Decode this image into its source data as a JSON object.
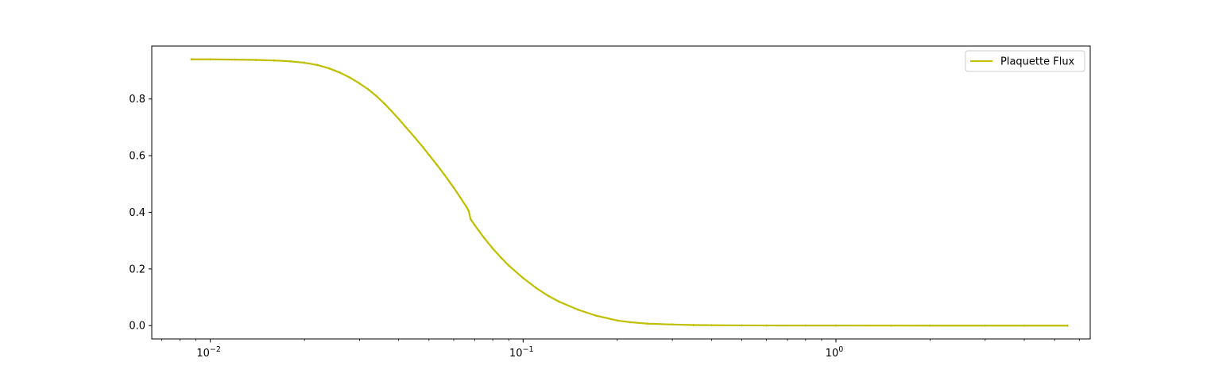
{
  "chart_data": {
    "type": "line",
    "title": "",
    "xlabel": "",
    "ylabel": "",
    "x_scale": "log",
    "xlim": [
      0.0065,
      6.5
    ],
    "ylim": [
      -0.047,
      0.987
    ],
    "grid": false,
    "legend_position": "top-right",
    "x_ticks": [
      {
        "value": 0.01,
        "base": "10",
        "exp": "−2"
      },
      {
        "value": 0.1,
        "base": "10",
        "exp": "−1"
      },
      {
        "value": 1,
        "base": "10",
        "exp": "0"
      }
    ],
    "y_ticks": [
      {
        "value": 0.0,
        "label": "0.0"
      },
      {
        "value": 0.2,
        "label": "0.2"
      },
      {
        "value": 0.4,
        "label": "0.4"
      },
      {
        "value": 0.6,
        "label": "0.6"
      },
      {
        "value": 0.8,
        "label": "0.8"
      }
    ],
    "series": [
      {
        "name": "Plaquette Flux",
        "color": "#bfbf00",
        "x": [
          0.0087,
          0.01,
          0.012,
          0.014,
          0.016,
          0.018,
          0.02,
          0.022,
          0.024,
          0.026,
          0.028,
          0.03,
          0.032,
          0.034,
          0.036,
          0.038,
          0.04,
          0.042,
          0.045,
          0.048,
          0.05,
          0.053,
          0.056,
          0.06,
          0.063,
          0.066,
          0.067,
          0.068,
          0.07,
          0.075,
          0.08,
          0.085,
          0.09,
          0.1,
          0.11,
          0.12,
          0.13,
          0.15,
          0.17,
          0.2,
          0.22,
          0.25,
          0.3,
          0.35,
          0.4,
          0.5,
          0.6,
          0.8,
          1.0,
          1.5,
          2.0,
          3.0,
          4.0,
          5.5
        ],
        "y": [
          0.94,
          0.94,
          0.939,
          0.938,
          0.936,
          0.933,
          0.928,
          0.92,
          0.908,
          0.893,
          0.875,
          0.855,
          0.834,
          0.81,
          0.784,
          0.757,
          0.73,
          0.703,
          0.665,
          0.628,
          0.603,
          0.568,
          0.533,
          0.487,
          0.452,
          0.418,
          0.405,
          0.375,
          0.355,
          0.31,
          0.272,
          0.24,
          0.212,
          0.168,
          0.133,
          0.106,
          0.085,
          0.056,
          0.036,
          0.018,
          0.012,
          0.007,
          0.004,
          0.002,
          0.0015,
          0.0008,
          0.0005,
          0.0003,
          0.0002,
          0.0001,
          0.0,
          0.0,
          0.0,
          0.0
        ]
      }
    ]
  }
}
